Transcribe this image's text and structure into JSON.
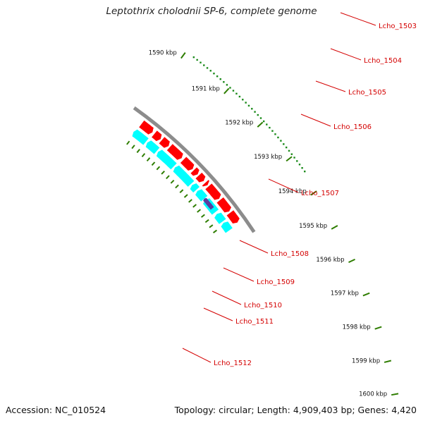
{
  "title": "Leptothrix cholodnii SP-6, complete genome",
  "footer": {
    "accession": "Accession: NC_010524",
    "info": "Topology: circular; Length: 4,909,403 bp; Genes: 4,420"
  },
  "colors": {
    "backbone": "#8c8c8c",
    "forward_gene": "#ff0000",
    "reverse_gene": "#00ffff",
    "highlight_gene": "#5a3ea0",
    "label": "#d40000",
    "tick_major": "#2e7d00",
    "tick_minor": "#1a8a1a"
  },
  "scale": {
    "ticks": [
      {
        "label": "1590 kbp"
      },
      {
        "label": "1591 kbp"
      },
      {
        "label": "1592 kbp"
      },
      {
        "label": "1593 kbp"
      },
      {
        "label": "1594 kbp"
      },
      {
        "label": "1595 kbp"
      },
      {
        "label": "1596 kbp"
      },
      {
        "label": "1597 kbp"
      },
      {
        "label": "1598 kbp"
      },
      {
        "label": "1599 kbp"
      },
      {
        "label": "1600 kbp"
      }
    ]
  },
  "genes": [
    {
      "label": "Lcho_1503"
    },
    {
      "label": "Lcho_1504"
    },
    {
      "label": "Lcho_1505"
    },
    {
      "label": "Lcho_1506"
    },
    {
      "label": "Lcho_1507"
    },
    {
      "label": "Lcho_1508"
    },
    {
      "label": "Lcho_1509"
    },
    {
      "label": "Lcho_1510"
    },
    {
      "label": "Lcho_1511"
    },
    {
      "label": "Lcho_1512"
    }
  ]
}
